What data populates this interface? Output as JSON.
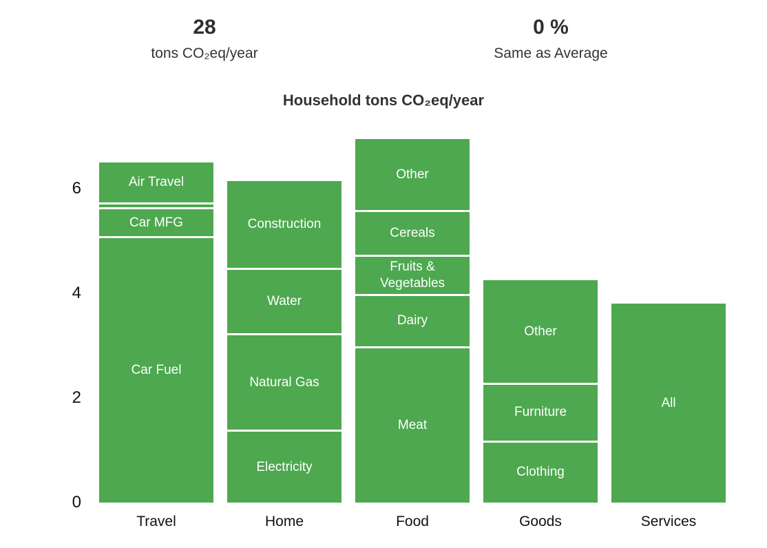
{
  "summary": {
    "total_value": "28",
    "total_label": "tons CO₂eq/year",
    "comparison_value": "0 %",
    "comparison_label": "Same as Average"
  },
  "chart_data": {
    "type": "bar",
    "stacked": true,
    "title": "Household tons CO₂eq/year",
    "xlabel": "",
    "ylabel": "",
    "ylim": [
      0,
      7
    ],
    "yticks": [
      "0",
      "2",
      "4",
      "6"
    ],
    "ytick_values": [
      0,
      2,
      4,
      6
    ],
    "grid": false,
    "legend": "none",
    "bar_color": "#4da84f",
    "separator_color": "#ffffff",
    "segment_label_color": "#ffffff",
    "categories": [
      "Travel",
      "Home",
      "Food",
      "Goods",
      "Services"
    ],
    "segment_order": "bottom-to-top",
    "unit": "tons CO₂eq/year",
    "bars": [
      {
        "category": "Travel",
        "total": 6.5,
        "segments": [
          {
            "label": "Car Fuel",
            "value": 5.05
          },
          {
            "label": "Car MFG",
            "value": 0.55
          },
          {
            "label": "",
            "value": 0.1
          },
          {
            "label": "Air Travel",
            "value": 0.8
          }
        ]
      },
      {
        "category": "Home",
        "total": 6.15,
        "segments": [
          {
            "label": "Electricity",
            "value": 1.35
          },
          {
            "label": "Natural Gas",
            "value": 1.85
          },
          {
            "label": "Water",
            "value": 1.25
          },
          {
            "label": "Construction",
            "value": 1.7
          }
        ]
      },
      {
        "category": "Food",
        "total": 6.95,
        "segments": [
          {
            "label": "Meat",
            "value": 2.95
          },
          {
            "label": "Dairy",
            "value": 1.0
          },
          {
            "label": "Fruits & Vegetables",
            "value": 0.75
          },
          {
            "label": "Cereals",
            "value": 0.85
          },
          {
            "label": "Other",
            "value": 1.4
          }
        ]
      },
      {
        "category": "Goods",
        "total": 4.25,
        "segments": [
          {
            "label": "Clothing",
            "value": 1.15
          },
          {
            "label": "Furniture",
            "value": 1.1
          },
          {
            "label": "Other",
            "value": 2.0
          }
        ]
      },
      {
        "category": "Services",
        "total": 3.8,
        "segments": [
          {
            "label": "All",
            "value": 3.8
          }
        ]
      }
    ]
  }
}
